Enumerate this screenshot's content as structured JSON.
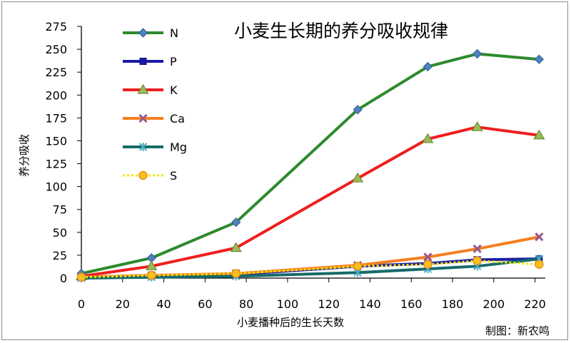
{
  "chart_data": {
    "type": "line",
    "title": "小麦生长期的养分吸收规律",
    "xlabel": "小麦播种后的生长天数",
    "ylabel": "养分吸收",
    "credit": "制图：新农鸣",
    "xlim": [
      0,
      225
    ],
    "ylim": [
      0,
      275
    ],
    "xticks": [
      "0",
      "20",
      "40",
      "60",
      "80",
      "100",
      "120",
      "140",
      "160",
      "180",
      "200",
      "220"
    ],
    "yticks": [
      "0",
      "25",
      "50",
      "75",
      "100",
      "125",
      "150",
      "175",
      "200",
      "225",
      "250",
      "275"
    ],
    "x": [
      0,
      34,
      75,
      134,
      168,
      192,
      222
    ],
    "grid": false,
    "legend_position": "left, inside plot",
    "series": [
      {
        "name": "N",
        "values": [
          5,
          22,
          61,
          184,
          231,
          245,
          239
        ],
        "color": "#2d8a2d",
        "marker": "diamond",
        "marker_fill": "#4f81bd",
        "marker_stroke": "#2e5f97",
        "dash": ""
      },
      {
        "name": "P",
        "values": [
          1,
          3,
          4,
          13,
          16,
          20,
          21
        ],
        "color": "#1a1aa8",
        "marker": "square",
        "marker_fill": "#1a1aa8",
        "marker_stroke": "#10107a",
        "dash": ""
      },
      {
        "name": "K",
        "values": [
          2,
          13,
          33,
          109,
          152,
          165,
          156
        ],
        "color": "#f01e1e",
        "marker": "triangle",
        "marker_fill": "#9bbb59",
        "marker_stroke": "#6b8a2e",
        "dash": ""
      },
      {
        "name": "Ca",
        "values": [
          1,
          3,
          5,
          14,
          23,
          32,
          45
        ],
        "color": "#f47f20",
        "marker": "x",
        "marker_fill": "#7f5bb5",
        "marker_stroke": "#c0504d",
        "dash": ""
      },
      {
        "name": "Mg",
        "values": [
          0,
          1,
          2,
          6,
          10,
          13,
          21
        ],
        "color": "#156b6b",
        "marker": "star",
        "marker_fill": "#4bacc6",
        "marker_stroke": "#2b8aa6",
        "dash": ""
      },
      {
        "name": "S",
        "values": [
          1,
          3,
          5,
          13,
          15,
          19,
          15
        ],
        "color": "#f2e600",
        "marker": "circle",
        "marker_fill": "#f7c21a",
        "marker_stroke": "#e6911a",
        "dash": "3,3"
      }
    ]
  }
}
